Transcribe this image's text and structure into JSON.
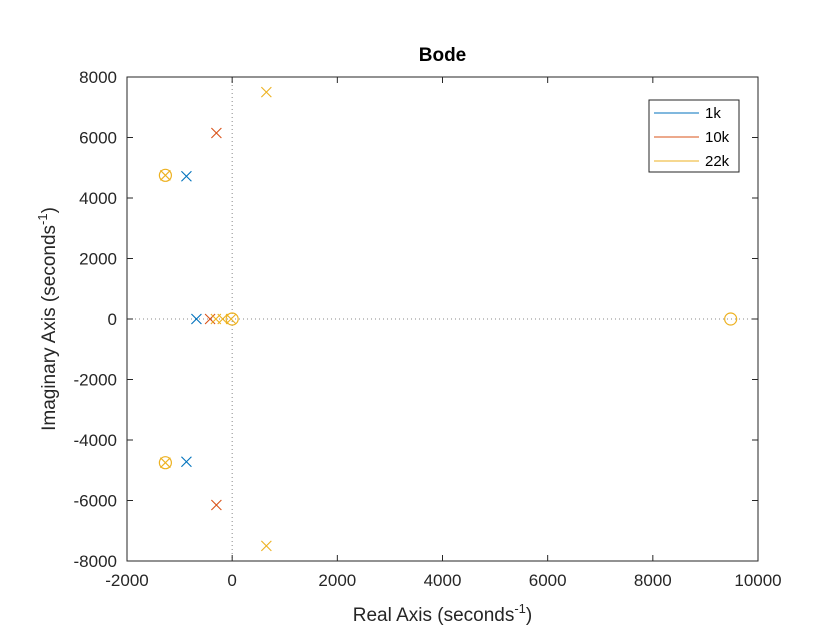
{
  "chart_data": {
    "type": "scatter",
    "title": "Bode",
    "xlabel": {
      "text": "Real Axis (seconds",
      "sup": "-1",
      "suffix": ")"
    },
    "ylabel": {
      "text": "Imaginary Axis (seconds",
      "sup": "-1",
      "suffix": ")"
    },
    "xlim": [
      -2000,
      10000
    ],
    "ylim": [
      -8000,
      8000
    ],
    "xticks": [
      -2000,
      0,
      2000,
      4000,
      6000,
      8000,
      10000
    ],
    "yticks": [
      -8000,
      -6000,
      -4000,
      -2000,
      0,
      2000,
      4000,
      6000,
      8000
    ],
    "grid": false,
    "legend_position": "top-right",
    "series": [
      {
        "name": "1k",
        "color": "#0072BD",
        "poles": [
          [
            -870,
            4720
          ],
          [
            -870,
            -4720
          ],
          [
            -680,
            0
          ]
        ],
        "zeros": []
      },
      {
        "name": "10k",
        "color": "#D95319",
        "poles": [
          [
            -300,
            6150
          ],
          [
            -300,
            -6150
          ],
          [
            -420,
            0
          ]
        ],
        "zeros": []
      },
      {
        "name": "22k",
        "color": "#EDB120",
        "poles": [
          [
            650,
            7500
          ],
          [
            650,
            -7500
          ],
          [
            -1270,
            4750
          ],
          [
            -1270,
            -4750
          ],
          [
            -310,
            0
          ],
          [
            -180,
            0
          ],
          [
            -20,
            0
          ]
        ],
        "zeros": [
          [
            -1270,
            4750
          ],
          [
            -1270,
            -4750
          ],
          [
            0,
            0
          ],
          [
            9480,
            0
          ]
        ]
      }
    ]
  }
}
